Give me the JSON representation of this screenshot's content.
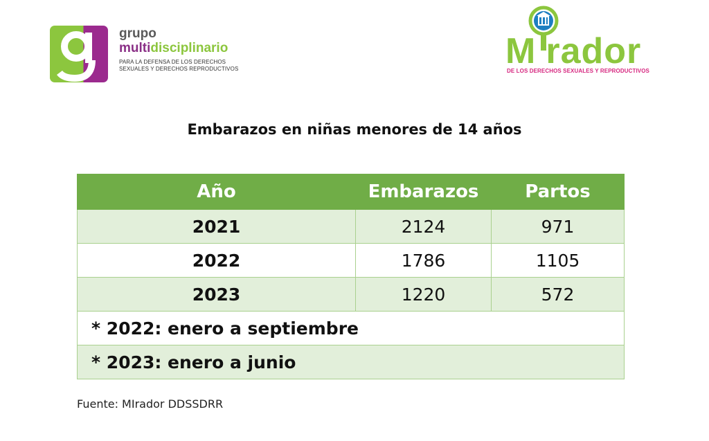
{
  "logos": {
    "left": {
      "mark_letter": "g",
      "line1": "grupo",
      "line2_a": "multi",
      "line2_b": "disciplinario",
      "tagline_1": "PARA LA DEFENSA DE LOS DERECHOS",
      "tagline_2": "SEXUALES Y DERECHOS REPRODUCTIVOS",
      "colors": {
        "green": "#8cc63e",
        "purple": "#9b2a8e",
        "gray": "#5a5a5a"
      }
    },
    "right": {
      "word_start": "M",
      "word_end": "rador",
      "subtitle": "DE LOS DERECHOS SEXUALES Y REPRODUCTIVOS",
      "icon": "magnifier-building-icon",
      "colors": {
        "green": "#8cc63e",
        "pink": "#d6267f",
        "blue": "#1e7fc1"
      }
    }
  },
  "title": "Embarazos en niñas menores de 14 años",
  "table": {
    "headers": [
      "Año",
      "Embarazos",
      "Partos"
    ],
    "rows": [
      {
        "year": "2021",
        "embarazos": "2124",
        "partos": "971"
      },
      {
        "year": "2022",
        "embarazos": "1786",
        "partos": "1105"
      },
      {
        "year": "2023",
        "embarazos": "1220",
        "partos": "572"
      }
    ],
    "notes": [
      "* 2022: enero a septiembre",
      "* 2023: enero a junio"
    ],
    "colors": {
      "header": "#70ad47",
      "band": "#e2efda",
      "grid": "#a9d08e"
    }
  },
  "source": "Fuente: MIrador DDSSDRR"
}
